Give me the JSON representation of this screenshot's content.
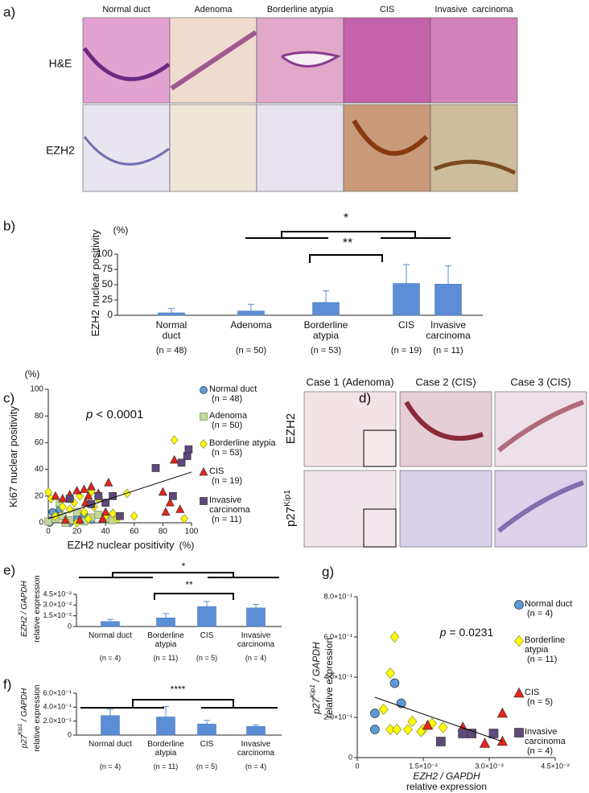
{
  "panel_labels": [
    "a)",
    "b)",
    "c)",
    "d)",
    "e)",
    "f)",
    "g)"
  ],
  "panel_a": {
    "columns": [
      "Normal duct",
      "Adenoma",
      "Borderline atypia",
      "CIS",
      "Invasive  carcinoma"
    ],
    "rows": [
      "H&E",
      "EZH2"
    ]
  },
  "panel_d": {
    "columns": [
      "Case 1 (Adenoma)",
      "Case 2 (CIS)",
      "Case 3 (CIS)"
    ],
    "rows": [
      [
        {
          "text": "EZH2"
        }
      ],
      [
        {
          "text": "p27"
        },
        {
          "text": "Kip1",
          "sup": true
        }
      ]
    ]
  },
  "chart_data": [
    {
      "type": "bar",
      "ylabel": [
        [
          {
            "text": "EZH2 nuclear positivity"
          }
        ]
      ],
      "yunit": "(%)",
      "categories": [
        "Normal duct",
        "Adenoma",
        "Borderline atypia",
        "CIS",
        "Invasive carcinoma"
      ],
      "n_labels": [
        "(n = 48)",
        "(n = 50)",
        "(n = 53)",
        "(n = 19)",
        "(n = 11)"
      ],
      "values": [
        4,
        7,
        21,
        52,
        51
      ],
      "errors": [
        7,
        11,
        19,
        31,
        30
      ],
      "color": "#5b8ed6",
      "ylim": [
        0,
        100
      ],
      "yticks": [
        0,
        25,
        50,
        75,
        100
      ],
      "significance": [
        {
          "label": "*"
        },
        {
          "label": "**"
        }
      ]
    },
    {
      "type": "scatter",
      "ylabel": [
        [
          {
            "text": "Ki67 nuclear positivity"
          }
        ]
      ],
      "yunit": "(%)",
      "xlabel": [
        [
          {
            "text": "EZH2 nuclear positivity"
          }
        ]
      ],
      "xunit": "(%)",
      "annotation": [
        {
          "text": "p",
          "italic": true
        },
        {
          "text": " < 0.0001"
        }
      ],
      "xlim": [
        0,
        100
      ],
      "xticks": [
        0,
        20,
        40,
        60,
        80,
        100
      ],
      "ylim": [
        0,
        100
      ],
      "yticks": [
        0,
        20,
        40,
        60,
        80,
        100
      ],
      "trendline": {
        "x": [
          0,
          100
        ],
        "y": [
          3,
          38
        ]
      },
      "series": [
        {
          "name": "Normal duct",
          "n_label": "(n = 48)",
          "marker": "circle",
          "color": "#5b9bd5",
          "x": [
            2,
            5,
            12,
            20,
            8,
            30,
            1,
            15,
            3,
            25
          ],
          "values": [
            2,
            5,
            1,
            3,
            10,
            2,
            0,
            0,
            8,
            6
          ]
        },
        {
          "name": "Adenoma",
          "n_label": "(n = 50)",
          "marker": "square",
          "color": "#c4d79b",
          "x": [
            0,
            5,
            10,
            15,
            20,
            25,
            30,
            35,
            40,
            45,
            8,
            12
          ],
          "values": [
            1,
            3,
            5,
            2,
            8,
            1,
            4,
            6,
            3,
            2,
            15,
            0
          ]
        },
        {
          "name": "Borderline atypia",
          "n_label": "(n = 53)",
          "marker": "diamond",
          "color": "#ffff00",
          "x": [
            0,
            2,
            5,
            10,
            15,
            18,
            22,
            25,
            28,
            32,
            35,
            40,
            45,
            55,
            60,
            88,
            95,
            48,
            20,
            30
          ],
          "values": [
            23,
            18,
            5,
            12,
            10,
            15,
            20,
            8,
            3,
            12,
            18,
            5,
            7,
            22,
            5,
            62,
            3,
            3,
            0,
            23
          ]
        },
        {
          "name": "CIS",
          "n_label": "(n = 19)",
          "marker": "triangle",
          "color": "#e8231a",
          "x": [
            5,
            10,
            15,
            20,
            25,
            28,
            30,
            35,
            40,
            42,
            12,
            22,
            38,
            80,
            85,
            88,
            92,
            82,
            26
          ],
          "values": [
            20,
            18,
            21,
            24,
            25,
            20,
            27,
            22,
            8,
            30,
            2,
            2,
            3,
            23,
            15,
            47,
            10,
            8,
            15
          ]
        },
        {
          "name": "Invasive carcinoma",
          "n_label": "(n = 11)",
          "marker": "square",
          "color": "#604a7b",
          "x": [
            15,
            30,
            35,
            40,
            45,
            50,
            75,
            87,
            93,
            97,
            98
          ],
          "values": [
            18,
            14,
            20,
            15,
            20,
            5,
            41,
            20,
            45,
            50,
            55
          ]
        }
      ]
    },
    {
      "type": "bar",
      "ylabel": [
        [
          {
            "text": "EZH2 / GAPDH",
            "italic": true
          }
        ],
        [
          {
            "text": "relative expression"
          }
        ]
      ],
      "categories": [
        "Normal duct",
        "Borderline atypia",
        "CIS",
        "Invasive carcinoma"
      ],
      "n_labels": [
        "(n = 4)",
        "(n = 11)",
        "(n = 5)",
        "(n = 4)"
      ],
      "values": [
        0.007,
        0.012,
        0.028,
        0.026
      ],
      "errors": [
        0.003,
        0.006,
        0.007,
        0.005
      ],
      "color": "#5b8ed6",
      "ylim": [
        0,
        0.045
      ],
      "yticks": [
        0,
        {
          "value": 0.015,
          "label": "1.5×10⁻²"
        },
        {
          "value": 0.03,
          "label": "3.0×10⁻²"
        },
        {
          "value": 0.045,
          "label": "4.5×10⁻²"
        }
      ],
      "significance": [
        {
          "label": "*"
        },
        {
          "label": "**"
        }
      ]
    },
    {
      "type": "bar",
      "ylabel": [
        [
          {
            "text": "p27",
            "italic": true
          },
          {
            "text": "Kip1",
            "italic": true,
            "sup": true
          },
          {
            "text": " / GAPDH",
            "italic": true
          }
        ],
        [
          {
            "text": "relative expression"
          }
        ]
      ],
      "categories": [
        "Normal duct",
        "Borderline atypia",
        "CIS",
        "Invasive carcinoma"
      ],
      "n_labels": [
        "(n = 4)",
        "(n = 11)",
        "(n = 5)",
        "(n = 4)"
      ],
      "values": [
        0.28,
        0.26,
        0.16,
        0.125
      ],
      "errors": [
        0.09,
        0.15,
        0.05,
        0.02
      ],
      "color": "#5b8ed6",
      "ylim": [
        0,
        0.6
      ],
      "yticks": [
        0,
        {
          "value": 0.2,
          "label": "2.0×10⁻¹"
        },
        {
          "value": 0.4,
          "label": "4.0×10⁻¹"
        },
        {
          "value": 0.6,
          "label": "6.0×10⁻¹"
        }
      ],
      "significance": [
        {
          "label": "****"
        }
      ]
    },
    {
      "type": "scatter",
      "ylabel": [
        [
          {
            "text": "p27",
            "italic": true
          },
          {
            "text": "Kip1",
            "italic": true,
            "sup": true
          },
          {
            "text": " / GAPDH",
            "italic": true
          }
        ],
        [
          {
            "text": "relative expression"
          }
        ]
      ],
      "xlabel": [
        [
          {
            "text": "EZH2 / GAPDH",
            "italic": true
          }
        ],
        [
          {
            "text": "relative expression"
          }
        ]
      ],
      "annotation": [
        {
          "text": "p",
          "italic": true
        },
        {
          "text": " = 0.0231"
        }
      ],
      "xlim": [
        0,
        0.045
      ],
      "xticks": [
        0,
        {
          "value": 0.015,
          "label": "1.5×10⁻²"
        },
        {
          "value": 0.03,
          "label": "3.0×10⁻²"
        },
        {
          "value": 0.045,
          "label": "4.5×10⁻²"
        }
      ],
      "ylim": [
        0,
        0.8
      ],
      "yticks": [
        0,
        {
          "value": 0.2,
          "label": "2.0×10⁻¹"
        },
        {
          "value": 0.4,
          "label": "4.0×10⁻¹"
        },
        {
          "value": 0.6,
          "label": "6.0×10⁻¹"
        },
        {
          "value": 0.8,
          "label": "8.0×10⁻¹"
        }
      ],
      "trendline": {
        "x": [
          0.004,
          0.033
        ],
        "y": [
          0.3,
          0.08
        ]
      },
      "series": [
        {
          "name": "Normal duct",
          "n_label": "(n = 4)",
          "marker": "circle",
          "color": "#5b9bd5",
          "x": [
            0.004,
            0.004,
            0.0085,
            0.01
          ],
          "values": [
            0.14,
            0.22,
            0.37,
            0.27
          ]
        },
        {
          "name": "Borderline atypia",
          "n_label": "(n = 11)",
          "marker": "diamond",
          "color": "#ffff00",
          "x": [
            0.006,
            0.0075,
            0.0085,
            0.0075,
            0.009,
            0.0115,
            0.0125,
            0.015,
            0.017,
            0.0195,
            0.0145
          ],
          "values": [
            0.24,
            0.42,
            0.6,
            0.14,
            0.14,
            0.14,
            0.18,
            0.14,
            0.17,
            0.15,
            0.13
          ]
        },
        {
          "name": "CIS",
          "n_label": "(n = 5)",
          "marker": "triangle",
          "color": "#e8231a",
          "x": [
            0.016,
            0.024,
            0.029,
            0.033,
            0.033
          ],
          "values": [
            0.16,
            0.15,
            0.07,
            0.08,
            0.22
          ]
        },
        {
          "name": "Invasive carcinoma",
          "n_label": "(n = 4)",
          "marker": "square",
          "color": "#604a7b",
          "x": [
            0.019,
            0.024,
            0.026,
            0.031
          ],
          "values": [
            0.08,
            0.12,
            0.12,
            0.12
          ]
        }
      ]
    }
  ]
}
